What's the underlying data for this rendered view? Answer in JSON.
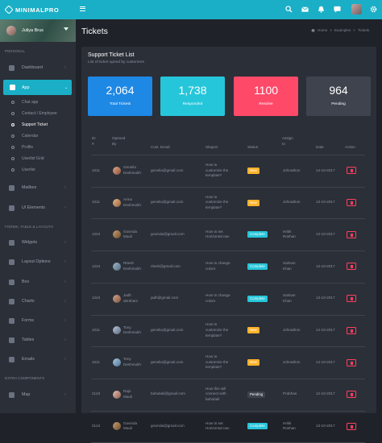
{
  "brand": {
    "name": "MINIMALPRO"
  },
  "user": {
    "name": "Juliya Brus"
  },
  "sidebar": {
    "section_personal": "PERSONAL",
    "section_forms": "FORMS, TABLE & LAYOUTS",
    "section_extra": "EXTRA COMPONENTS",
    "dashboard": "Dashboard",
    "app": "App",
    "sub": [
      "Chat app",
      "Contact / Employee",
      "Support Ticket",
      "Calendar",
      "Profile",
      "Userlist Grid",
      "Userlist"
    ],
    "mailbox": "Mailbox",
    "ui_elements": "UI Elements",
    "widgets": "Widgets",
    "layout_options": "Layout Options",
    "box": "Box",
    "charts": "Charts",
    "forms": "Forms",
    "tables": "Tables",
    "emails": "Emails",
    "map": "Map"
  },
  "page": {
    "title": "Tickets",
    "breadcrumb": [
      "Home",
      ">",
      "Examples",
      ">",
      "Tickets"
    ]
  },
  "card": {
    "title": "Support Ticket List",
    "subtitle": "List of ticket opend by customers"
  },
  "stats": [
    {
      "value": "2,064",
      "label": "Total Tickets",
      "color": "#1e88e5"
    },
    {
      "value": "1,738",
      "label": "Responded",
      "color": "#26c6da"
    },
    {
      "value": "1100",
      "label": "Resolve",
      "color": "#ff4969"
    },
    {
      "value": "964",
      "label": "Pending",
      "color": "#3e434d"
    }
  ],
  "table": {
    "headers": {
      "id": [
        "ID",
        "#"
      ],
      "opened": [
        "Opened",
        "By"
      ],
      "email": "Cust. Email",
      "subject": "Sbuject",
      "status": "Status",
      "assign": [
        "Assign",
        "to"
      ],
      "date": "Date",
      "action": "Action"
    },
    "rows": [
      {
        "id": "1011",
        "name": [
          "Genelia",
          "Deshmukh"
        ],
        "email": "genelia@gmail.com",
        "subject": [
          "How to",
          "customize the",
          "template?"
        ],
        "status": "New",
        "assign": [
          "Johnathon"
        ],
        "date": "14-10-2017"
      },
      {
        "id": "1011",
        "name": [
          "Arma",
          "Deshmukh"
        ],
        "email": "genelia@gmail.com",
        "subject": [
          "How to",
          "customize the",
          "template?"
        ],
        "status": "New",
        "assign": [
          "Johnathon"
        ],
        "date": "13-10-2017"
      },
      {
        "id": "1224",
        "name": [
          "Govinda",
          "Mauli"
        ],
        "email": "govinda@gmail.com",
        "subject": [
          "How to set",
          "Horizontal nav"
        ],
        "status": "Complete",
        "assign": [
          "Hritik",
          "Roshan"
        ],
        "date": "13-10-2017"
      },
      {
        "id": "1224",
        "name": [
          "Ritesh",
          "Deshmukh"
        ],
        "email": "ritesh@gmail.com",
        "subject": [
          "How to change",
          "colors"
        ],
        "status": "Complete",
        "assign": [
          "Salman",
          "Khan"
        ],
        "date": "13-10-2017"
      },
      {
        "id": "1224",
        "name": [
          "Jadh",
          "abraham"
        ],
        "email": "jadh@gmail.com",
        "subject": [
          "How to change",
          "colors"
        ],
        "status": "Complete",
        "assign": [
          "Salman",
          "Khan"
        ],
        "date": "13-10-2017"
      },
      {
        "id": "1011",
        "name": [
          "Tony",
          "Deshmukh"
        ],
        "email": "genelia@gmail.com",
        "subject": [
          "How to",
          "customize the",
          "template?"
        ],
        "status": "New",
        "assign": [
          "Johnathon"
        ],
        "date": "14-10-2017"
      },
      {
        "id": "1011",
        "name": [
          "Tony",
          "Deshmukh"
        ],
        "email": "genelia@gmail.com",
        "subject": [
          "How to",
          "customize the",
          "template?"
        ],
        "status": "New",
        "assign": [
          "Johnathon"
        ],
        "date": "14-10-2017"
      },
      {
        "id": "2124",
        "name": [
          "Rajo",
          "Mauli"
        ],
        "email": "bahubali@gmail.com",
        "subject": [
          "How this will",
          "connect with",
          "bahubali"
        ],
        "status": "Pending",
        "assign": [
          "Prabhas"
        ],
        "date": "12-10-2017"
      },
      {
        "id": "2124",
        "name": [
          "Govinda",
          "Mauli"
        ],
        "email": "govinda@gmail.com",
        "subject": [
          "How to set",
          "Horizontal nav"
        ],
        "status": "Complete",
        "assign": [
          "Hritik",
          "Roshan"
        ],
        "date": "13-10-2017"
      }
    ]
  },
  "status_colors": {
    "New": "#ffb22b",
    "Complete": "#26c6da",
    "Pending": "#3e434d"
  },
  "icons": [
    "search-icon",
    "mail-icon",
    "bell-icon",
    "chat-icon",
    "gear-icon"
  ]
}
